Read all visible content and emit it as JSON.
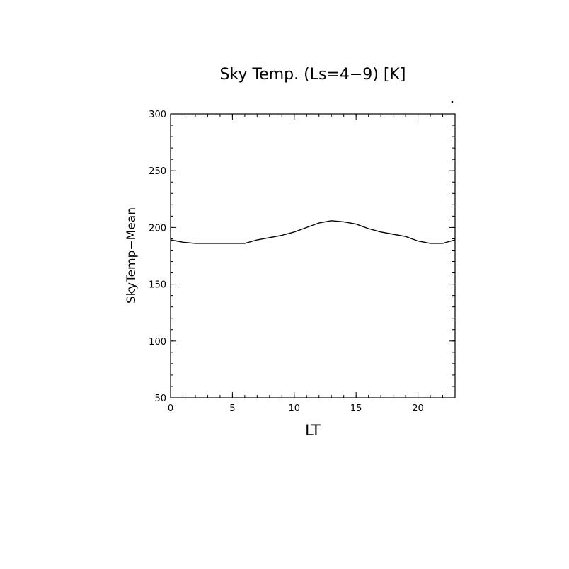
{
  "chart_data": {
    "type": "line",
    "title": "Sky Temp. (Ls=4−9) [K]",
    "xlabel": "LT",
    "ylabel": "SkyTemp−Mean",
    "xlim": [
      0,
      23
    ],
    "ylim": [
      50,
      300
    ],
    "xticks": [
      0,
      5,
      10,
      15,
      20
    ],
    "yticks": [
      50,
      100,
      150,
      200,
      250,
      300
    ],
    "grid": false,
    "series": [
      {
        "x": [
          0,
          1,
          2,
          3,
          4,
          5,
          6,
          7,
          8,
          9,
          10,
          11,
          12,
          13,
          14,
          15,
          16,
          17,
          18,
          19,
          20,
          21,
          22,
          23
        ],
        "values": [
          189,
          187,
          186,
          186,
          186,
          186,
          186,
          189,
          191,
          193,
          196,
          200,
          204,
          206,
          205,
          203,
          199,
          196,
          194,
          192,
          188,
          186,
          186,
          189
        ]
      }
    ]
  }
}
